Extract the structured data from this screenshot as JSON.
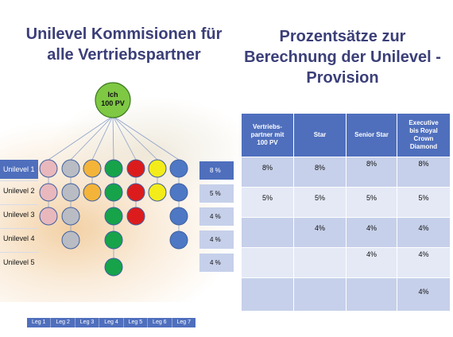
{
  "titles": {
    "left_line1": "Unilevel Kommisionen für",
    "left_line2": "alle Vertriebspartner",
    "right_line1": "Prozentsätze zur",
    "right_line2": "Berechnung der Unilevel -",
    "right_line3": "Provision"
  },
  "root": {
    "line1": "Ich",
    "line2": "100 PV",
    "color": "#7fc844"
  },
  "levels": [
    "Unilevel 1",
    "Unilevel 2",
    "Unilevel 3",
    "Unilevel 4",
    "Unilevel 5"
  ],
  "level_percents": [
    "8 %",
    "5 %",
    "4 %",
    "4 %",
    "4 %"
  ],
  "legs": [
    "Leg 1",
    "Leg 2",
    "Leg 3",
    "Leg 4",
    "Leg 5",
    "Leg 6",
    "Leg 7"
  ],
  "leg_colors": [
    "#e8b8bd",
    "#b9bcc3",
    "#f4b43a",
    "#16a34a",
    "#dc1c1c",
    "#f3ec1a",
    "#4e78c4"
  ],
  "leg_depths": [
    3,
    4,
    2,
    5,
    3,
    2,
    4
  ],
  "leg_level_colors": {
    "0": [
      "#e8b8bd",
      "#e8b8bd",
      "#e8b8bd"
    ],
    "1": [
      "#b9bcc3",
      "#b9bcc3",
      "#b9bcc3",
      "#b9bcc3"
    ],
    "2": [
      "#f4b43a",
      "#f4b43a"
    ],
    "3": [
      "#16a34a",
      "#16a34a",
      "#16a34a",
      "#16a34a",
      "#16a34a"
    ],
    "4": [
      "#dc1c1c",
      "#dc1c1c",
      "#dc1c1c"
    ],
    "5": [
      "#f3ec1a",
      "#f3ec1a"
    ],
    "6": [
      "#4e78c4",
      "#4e78c4",
      "#4e78c4",
      "#4e78c4"
    ]
  },
  "table": {
    "headers": [
      [
        "Vertriebs-",
        "partner mit",
        "100 PV"
      ],
      [
        "Star"
      ],
      [
        "Senior Star"
      ],
      [
        "Executive",
        "bis Royal",
        "Crown",
        "Diamond"
      ]
    ],
    "rows": [
      [
        "8%",
        "8%",
        "8%",
        "8%"
      ],
      [
        "5%",
        "5%",
        "5%",
        "5%"
      ],
      [
        "",
        "4%",
        "4%",
        "4%"
      ],
      [
        "",
        "",
        "4%",
        "4%"
      ],
      [
        "",
        "",
        "",
        "4%"
      ]
    ]
  }
}
